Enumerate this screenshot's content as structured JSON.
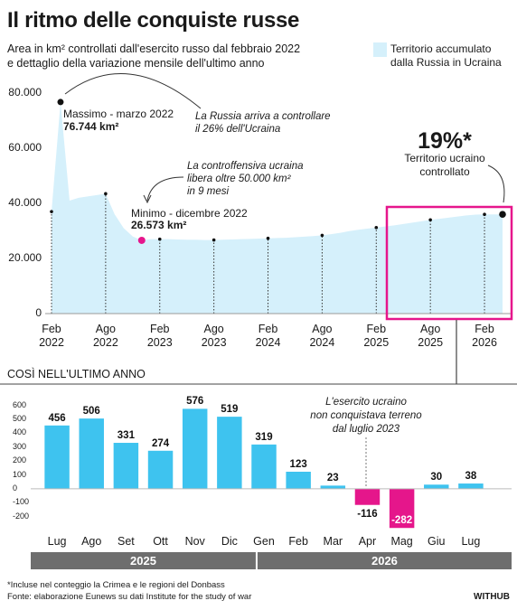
{
  "chart_data": [
    {
      "type": "area",
      "title": "Il ritmo delle conquiste russe",
      "subtitle": "Area in km² controllati dall'esercito russo dal febbraio 2022\ne dettaglio della variazione mensile dell'ultimo anno",
      "x": [
        "2022-02",
        "2022-03",
        "2022-04",
        "2022-05",
        "2022-06",
        "2022-07",
        "2022-08",
        "2022-09",
        "2022-10",
        "2022-11",
        "2022-12",
        "2023-01",
        "2023-02",
        "2023-03",
        "2023-04",
        "2023-05",
        "2023-06",
        "2023-07",
        "2023-08",
        "2023-09",
        "2023-10",
        "2023-11",
        "2023-12",
        "2024-01",
        "2024-02",
        "2024-03",
        "2024-04",
        "2024-05",
        "2024-06",
        "2024-07",
        "2024-08",
        "2024-09",
        "2024-10",
        "2024-11",
        "2024-12",
        "2025-01",
        "2025-02",
        "2025-03",
        "2025-04",
        "2025-05",
        "2025-06",
        "2025-07",
        "2025-08",
        "2025-09",
        "2025-10",
        "2025-11",
        "2025-12",
        "2026-01",
        "2026-02",
        "2026-03",
        "2026-04"
      ],
      "series": [
        {
          "name": "Territorio accumulato\ndalla Russia in Ucraina",
          "color": "#d5f0fb",
          "values": [
            37000,
            76744,
            41000,
            42000,
            42500,
            43000,
            43500,
            36000,
            31000,
            28000,
            26573,
            27000,
            27000,
            27000,
            26900,
            26800,
            26800,
            26700,
            26700,
            26800,
            26900,
            27000,
            27100,
            27200,
            27300,
            27400,
            27500,
            27700,
            27900,
            28100,
            28400,
            28800,
            29300,
            29900,
            30400,
            30800,
            31200,
            31600,
            32000,
            32500,
            33000,
            33500,
            34000,
            34400,
            34800,
            35200,
            35600,
            35900,
            36000,
            36000,
            36000
          ]
        }
      ],
      "xlim": [
        "2022-02",
        "2026-04"
      ],
      "xticks": [
        {
          "value": "2022-02",
          "label": "Feb\n2022"
        },
        {
          "value": "2022-08",
          "label": "Ago\n2022"
        },
        {
          "value": "2023-02",
          "label": "Feb\n2023"
        },
        {
          "value": "2023-08",
          "label": "Ago\n2023"
        },
        {
          "value": "2024-02",
          "label": "Feb\n2024"
        },
        {
          "value": "2024-08",
          "label": "Ago\n2024"
        },
        {
          "value": "2025-02",
          "label": "Feb\n2025"
        },
        {
          "value": "2025-08",
          "label": "Ago\n2025"
        },
        {
          "value": "2026-02",
          "label": "Feb\n2026"
        }
      ],
      "ylim": [
        0,
        80000
      ],
      "yticks": [
        0,
        {
          "value": 20000,
          "label": "20.000"
        },
        {
          "value": 40000,
          "label": "40.000"
        },
        {
          "value": 60000,
          "label": "60.000"
        },
        {
          "value": 80000,
          "label": "80.000"
        }
      ],
      "grid": false,
      "marker_color": "#111111",
      "min_color": "#e6168c",
      "max_label": "Massimo - marzo 2022",
      "max_value_label": "76.744 km²",
      "max_note": "La Russia arriva a controllare\nil 26% dell'Ucraina",
      "counteroffensive_note": "La controffensiva ucraina\nlibera oltre 50.000 km²\nin 9 mesi",
      "min_label": "Minimo - dicembre 2022",
      "min_value_label": "26.573 km²",
      "share_label": "19%*",
      "share_text": "Territorio ucraino\ncontrollato"
    },
    {
      "type": "bar",
      "title": "COSÌ NELL'ULTIMO ANNO",
      "categories": [
        "Lug",
        "Ago",
        "Set",
        "Ott",
        "Nov",
        "Dic",
        "Gen",
        "Feb",
        "Mar",
        "Apr",
        "Mag",
        "Giu",
        "Lug"
      ],
      "category_groups": [
        "2025",
        "2025",
        "2025",
        "2025",
        "2025",
        "2025",
        "2026",
        "2026",
        "2026",
        "2026",
        "2026",
        "2026",
        "2026"
      ],
      "values": [
        456,
        506,
        331,
        274,
        576,
        519,
        319,
        123,
        23,
        -116,
        -282,
        30,
        38
      ],
      "color": "#3ec3ef",
      "negative_color": "#e5168b",
      "ylim": [
        -300,
        650
      ],
      "yticks": [
        -200,
        -100,
        0,
        100,
        200,
        300,
        400,
        500,
        600
      ],
      "grid": false,
      "annotation": "L'esercito ucraino\nnon conquistava terreno\ndal luglio 2023"
    }
  ],
  "footnote": "*Incluse nel conteggio la Crimea e le regioni del Donbass",
  "source": "Fonte: elaborazione Eunews su dati Institute for the study of war",
  "credit": "WITHUB"
}
